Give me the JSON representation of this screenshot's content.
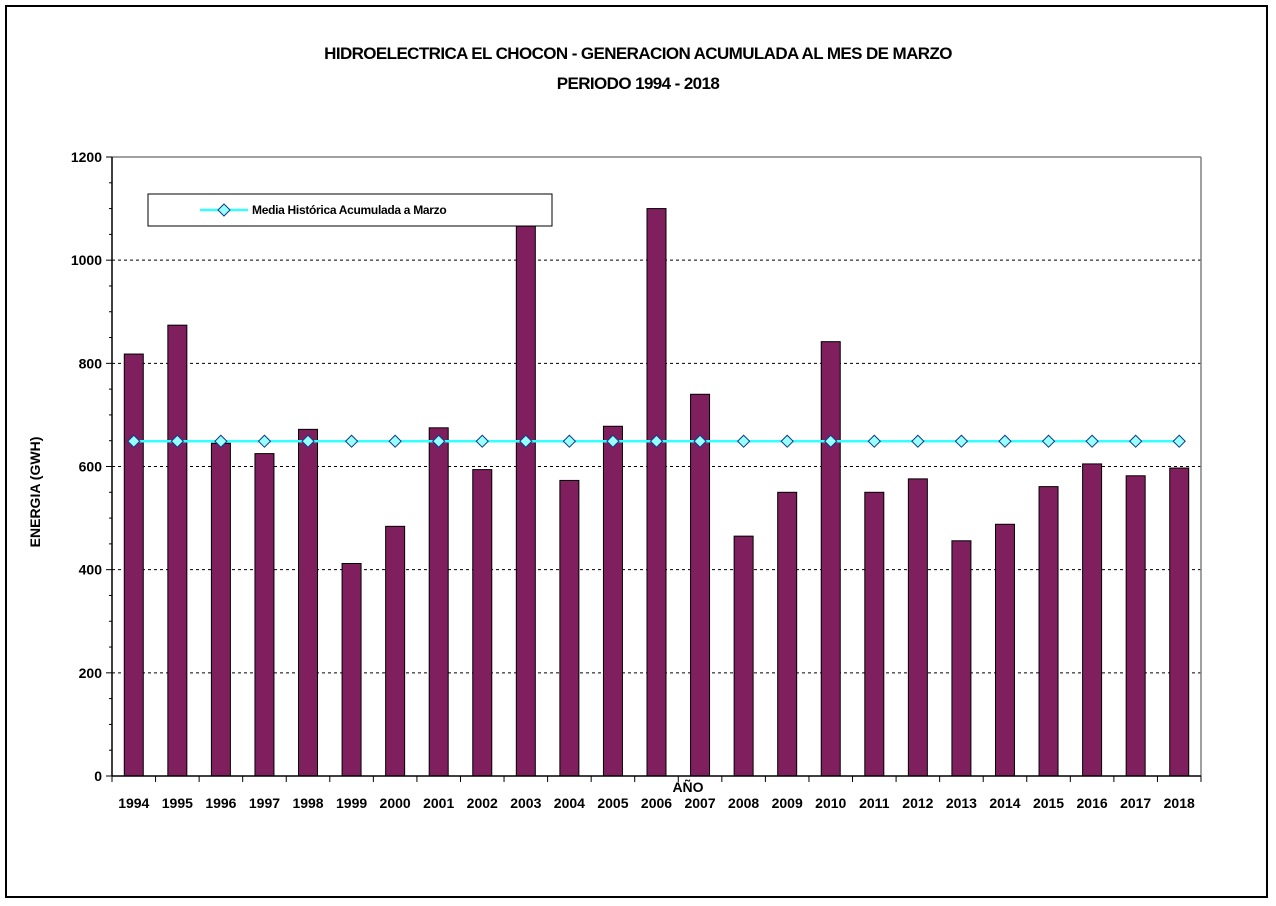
{
  "chart_data": {
    "type": "bar",
    "title": "HIDROELECTRICA EL CHOCON - GENERACION ACUMULADA AL MES DE MARZO",
    "subtitle": "PERIODO 1994 - 2018",
    "xlabel": "AÑO",
    "ylabel": "ENERGIA (GWH)",
    "ylim": [
      0,
      1200
    ],
    "yticks": [
      0,
      200,
      400,
      600,
      800,
      1000,
      1200
    ],
    "grid": "horizontal dashed",
    "legend_position": "top-left",
    "categories": [
      "1994",
      "1995",
      "1996",
      "1997",
      "1998",
      "1999",
      "2000",
      "2001",
      "2002",
      "2003",
      "2004",
      "2005",
      "2006",
      "2007",
      "2008",
      "2009",
      "2010",
      "2011",
      "2012",
      "2013",
      "2014",
      "2015",
      "2016",
      "2017",
      "2018"
    ],
    "series": [
      {
        "type": "bar",
        "values": [
          818,
          874,
          645,
          625,
          672,
          412,
          484,
          675,
          594,
          1066,
          573,
          678,
          1100,
          740,
          465,
          550,
          842,
          550,
          576,
          456,
          488,
          561,
          605,
          582,
          597
        ],
        "color": "#7f1f5e"
      },
      {
        "type": "line",
        "name": "Media Histórica Acumulada a Marzo",
        "value": 649,
        "line_color": "#33ffff",
        "marker": "diamond",
        "marker_color": "#99ffff"
      }
    ]
  }
}
